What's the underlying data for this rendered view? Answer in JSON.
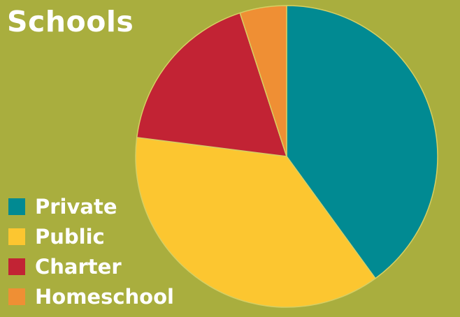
{
  "chart_data": {
    "type": "pie",
    "title": "Schools",
    "categories": [
      "Private",
      "Public",
      "Charter",
      "Homeschool"
    ],
    "values": [
      40,
      37,
      18,
      5
    ],
    "unit": "percent (estimated share of pie)",
    "colors": [
      "#018a92",
      "#fcc630",
      "#c22334",
      "#ef8f34"
    ],
    "background_color": "#a9ae3e",
    "start_angle": "12 o'clock",
    "direction": "clockwise",
    "legend_position": "bottom-left"
  }
}
